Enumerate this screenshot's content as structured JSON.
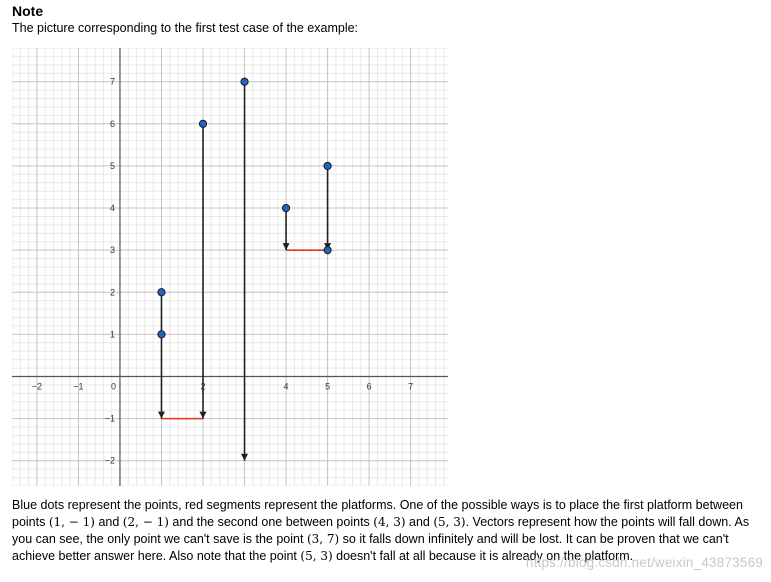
{
  "heading": "Note",
  "caption": "The picture corresponding to the first test case of the example:",
  "chart_data": {
    "type": "scatter",
    "xlim": [
      -2.6,
      7.9
    ],
    "ylim": [
      -2.6,
      7.8
    ],
    "x_ticks": [
      "−2",
      "−1",
      "0",
      "2",
      "4",
      "5",
      "6",
      "7"
    ],
    "x_tick_values": [
      -2,
      -1,
      0,
      2,
      4,
      5,
      6,
      7
    ],
    "x_unlabeled_ticks": [
      1,
      3
    ],
    "y_ticks": [
      "−2",
      "−1",
      "1",
      "2",
      "3",
      "4",
      "5",
      "6",
      "7"
    ],
    "y_tick_values": [
      -2,
      -1,
      1,
      2,
      3,
      4,
      5,
      6,
      7
    ],
    "grid": true,
    "points": [
      [
        1,
        2
      ],
      [
        1,
        1
      ],
      [
        2,
        6
      ],
      [
        3,
        7
      ],
      [
        4,
        4
      ],
      [
        5,
        5
      ],
      [
        5,
        3
      ]
    ],
    "point_color": "#1f65c4",
    "platforms": [
      {
        "x1": 1,
        "x2": 2,
        "y": -1
      },
      {
        "x1": 4,
        "x2": 5,
        "y": 3
      }
    ],
    "platform_color": "#e8311f",
    "vectors": [
      {
        "x": 1,
        "y_from": 2,
        "y_to": -1
      },
      {
        "x": 2,
        "y_from": 6,
        "y_to": -1
      },
      {
        "x": 3,
        "y_from": 7,
        "y_to": -2
      },
      {
        "x": 4,
        "y_from": 4,
        "y_to": 3
      },
      {
        "x": 5,
        "y_from": 5,
        "y_to": 3
      }
    ]
  },
  "description": {
    "s1": "Blue dots represent the points, red segments represent the platforms. One of the possible ways is to place the first platform between points ",
    "p1": "(1, − 1)",
    "s2": " and ",
    "p2": "(2, − 1)",
    "s3": " and the second one between points ",
    "p3": "(4, 3)",
    "s4": " and ",
    "p4": "(5, 3)",
    "s5": ". Vectors represent how the points will fall down. As you can see, the only point we can't save is the point ",
    "p5": "(3, 7)",
    "s6": " so it falls down infinitely and will be lost. It can be proven that we can't achieve better answer here. Also note that the point ",
    "p6": "(5, 3)",
    "s7": " doesn't fall at all because it is already on the platform."
  },
  "watermark": "https://blog.csdn.net/weixin_43873569"
}
